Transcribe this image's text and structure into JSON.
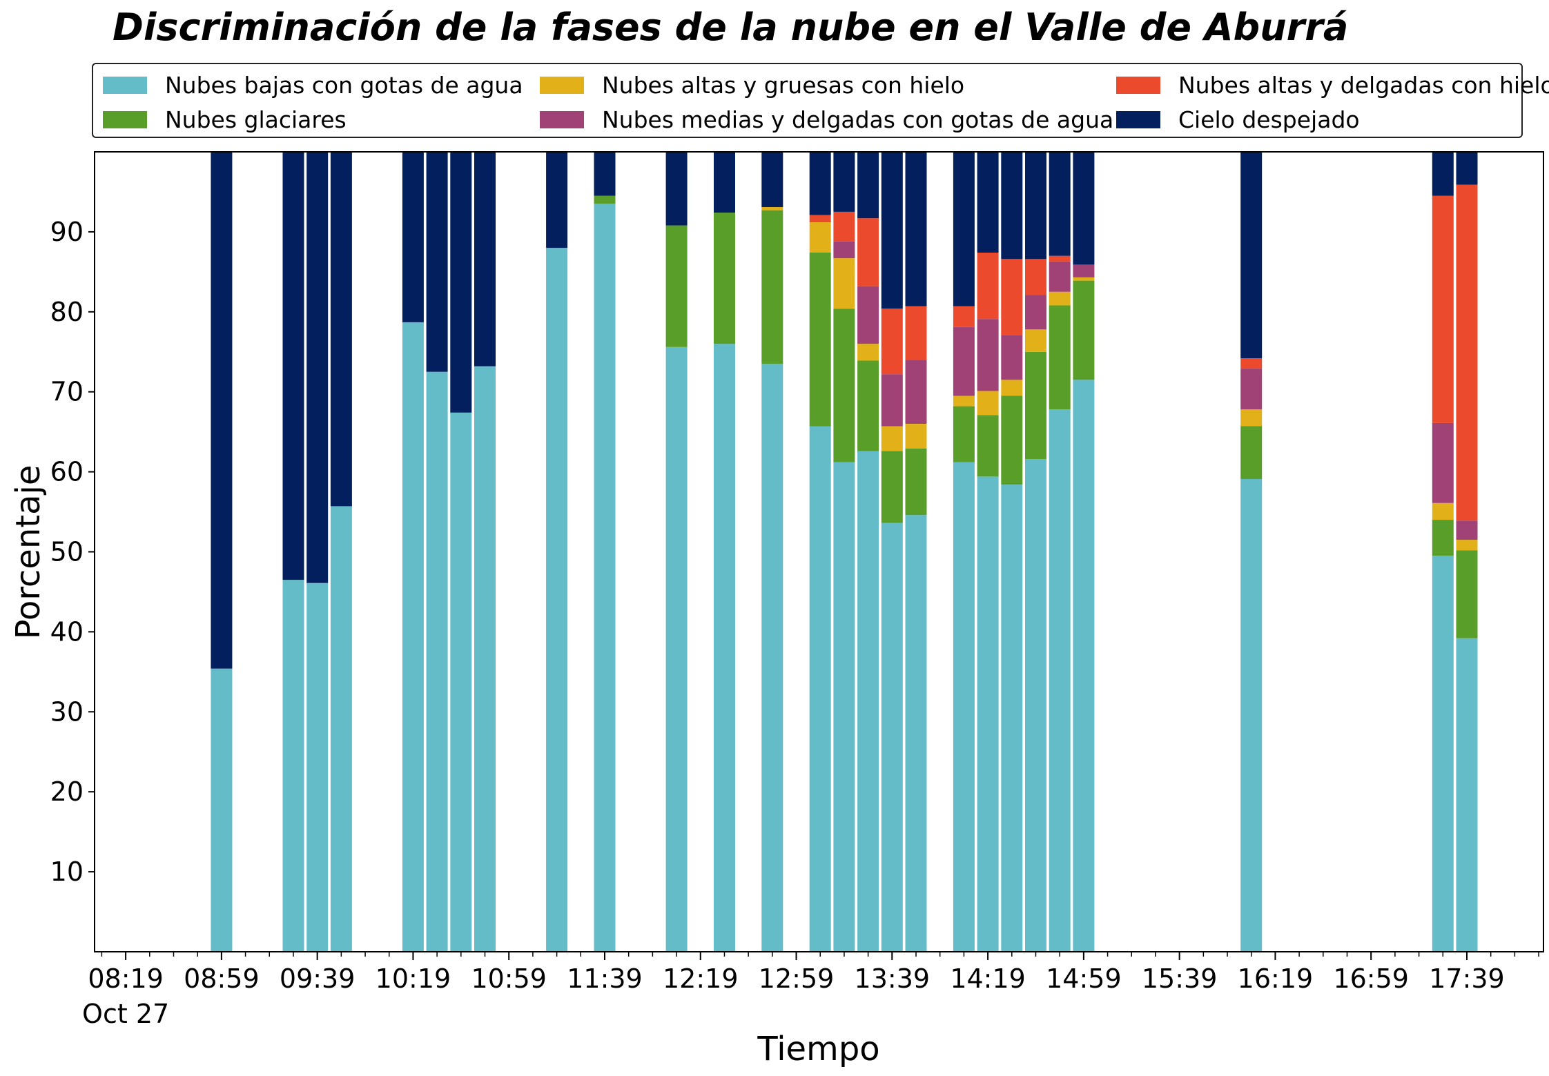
{
  "chart_data": {
    "type": "bar",
    "stacked": true,
    "title": "Discriminación de la fases de la nube en el Valle de Aburrá",
    "xlabel": "Tiempo",
    "ylabel": "Porcentaje",
    "ylim": [
      0,
      100
    ],
    "yticks": [
      10,
      20,
      30,
      40,
      50,
      60,
      70,
      80,
      90
    ],
    "x_range_minutes": [
      486,
      1091
    ],
    "xticks": [
      {
        "minute": 499,
        "label": "08:19",
        "sublabel": "Oct 27"
      },
      {
        "minute": 539,
        "label": "08:59"
      },
      {
        "minute": 579,
        "label": "09:39"
      },
      {
        "minute": 619,
        "label": "10:19"
      },
      {
        "minute": 659,
        "label": "10:59"
      },
      {
        "minute": 699,
        "label": "11:39"
      },
      {
        "minute": 739,
        "label": "12:19"
      },
      {
        "minute": 779,
        "label": "12:59"
      },
      {
        "minute": 819,
        "label": "13:39"
      },
      {
        "minute": 859,
        "label": "14:19"
      },
      {
        "minute": 899,
        "label": "14:59"
      },
      {
        "minute": 939,
        "label": "15:39"
      },
      {
        "minute": 979,
        "label": "16:19"
      },
      {
        "minute": 1019,
        "label": "16:59"
      },
      {
        "minute": 1059,
        "label": "17:39"
      }
    ],
    "legend_position": "top",
    "series": [
      {
        "name": "Nubes bajas con gotas de agua",
        "color": "#63BCC8"
      },
      {
        "name": "Nubes glaciares",
        "color": "#5A9E2A"
      },
      {
        "name": "Nubes altas y gruesas con hielo",
        "color": "#E2B11A"
      },
      {
        "name": "Nubes medias y delgadas con gotas de agua",
        "color": "#A14277"
      },
      {
        "name": "Nubes altas y delgadas con hielo",
        "color": "#EC4A2C"
      },
      {
        "name": "Cielo despejado",
        "color": "#031F5E"
      }
    ],
    "bars": [
      {
        "time": "08:59",
        "values": [
          35.4,
          0,
          0,
          0,
          0,
          64.6
        ]
      },
      {
        "time": "09:29",
        "values": [
          46.5,
          0,
          0,
          0,
          0,
          53.5
        ]
      },
      {
        "time": "09:39",
        "values": [
          46.1,
          0,
          0,
          0,
          0,
          53.9
        ]
      },
      {
        "time": "09:49",
        "values": [
          55.7,
          0,
          0,
          0,
          0,
          44.3
        ]
      },
      {
        "time": "10:19",
        "values": [
          78.7,
          0,
          0,
          0,
          0,
          21.3
        ]
      },
      {
        "time": "10:29",
        "values": [
          72.5,
          0,
          0,
          0,
          0,
          27.5
        ]
      },
      {
        "time": "10:39",
        "values": [
          67.4,
          0,
          0,
          0,
          0,
          32.6
        ]
      },
      {
        "time": "10:49",
        "values": [
          73.2,
          0,
          0,
          0,
          0,
          26.8
        ]
      },
      {
        "time": "11:19",
        "values": [
          88.0,
          0,
          0,
          0,
          0,
          12.0
        ]
      },
      {
        "time": "11:39",
        "values": [
          93.5,
          1.0,
          0,
          0,
          0,
          5.5
        ]
      },
      {
        "time": "12:09",
        "values": [
          75.6,
          15.2,
          0,
          0,
          0,
          9.2
        ]
      },
      {
        "time": "12:29",
        "values": [
          76.0,
          16.4,
          0,
          0,
          0,
          7.6
        ]
      },
      {
        "time": "12:49",
        "values": [
          73.5,
          19.2,
          0.4,
          0,
          0,
          6.9
        ]
      },
      {
        "time": "13:09",
        "values": [
          65.7,
          21.7,
          3.8,
          0,
          0.9,
          7.9
        ]
      },
      {
        "time": "13:19",
        "values": [
          61.2,
          19.2,
          6.3,
          2.1,
          3.7,
          7.5
        ]
      },
      {
        "time": "13:29",
        "values": [
          62.6,
          11.3,
          2.1,
          7.2,
          8.5,
          8.3
        ]
      },
      {
        "time": "13:39",
        "values": [
          53.6,
          9.0,
          3.1,
          6.5,
          8.2,
          19.6
        ]
      },
      {
        "time": "13:49",
        "values": [
          54.6,
          8.3,
          3.1,
          8.0,
          6.7,
          19.3
        ]
      },
      {
        "time": "14:09",
        "values": [
          61.2,
          7.0,
          1.3,
          8.6,
          2.6,
          19.3
        ]
      },
      {
        "time": "14:19",
        "values": [
          59.4,
          7.7,
          3.0,
          9.0,
          8.3,
          12.6
        ]
      },
      {
        "time": "14:29",
        "values": [
          58.4,
          11.1,
          2.0,
          5.6,
          9.5,
          13.4
        ]
      },
      {
        "time": "14:39",
        "values": [
          61.6,
          13.4,
          2.8,
          4.3,
          4.5,
          13.4
        ]
      },
      {
        "time": "14:49",
        "values": [
          67.8,
          13.0,
          1.7,
          3.8,
          0.7,
          13.0
        ]
      },
      {
        "time": "14:59",
        "values": [
          71.5,
          12.4,
          0.4,
          1.6,
          0,
          14.1
        ]
      },
      {
        "time": "16:09",
        "values": [
          59.1,
          6.6,
          2.1,
          5.1,
          1.3,
          25.8
        ]
      },
      {
        "time": "17:29",
        "values": [
          49.5,
          4.5,
          2.1,
          10.0,
          28.4,
          5.5
        ]
      },
      {
        "time": "17:39",
        "values": [
          39.2,
          11.0,
          1.3,
          2.4,
          42.0,
          4.1
        ]
      }
    ]
  }
}
